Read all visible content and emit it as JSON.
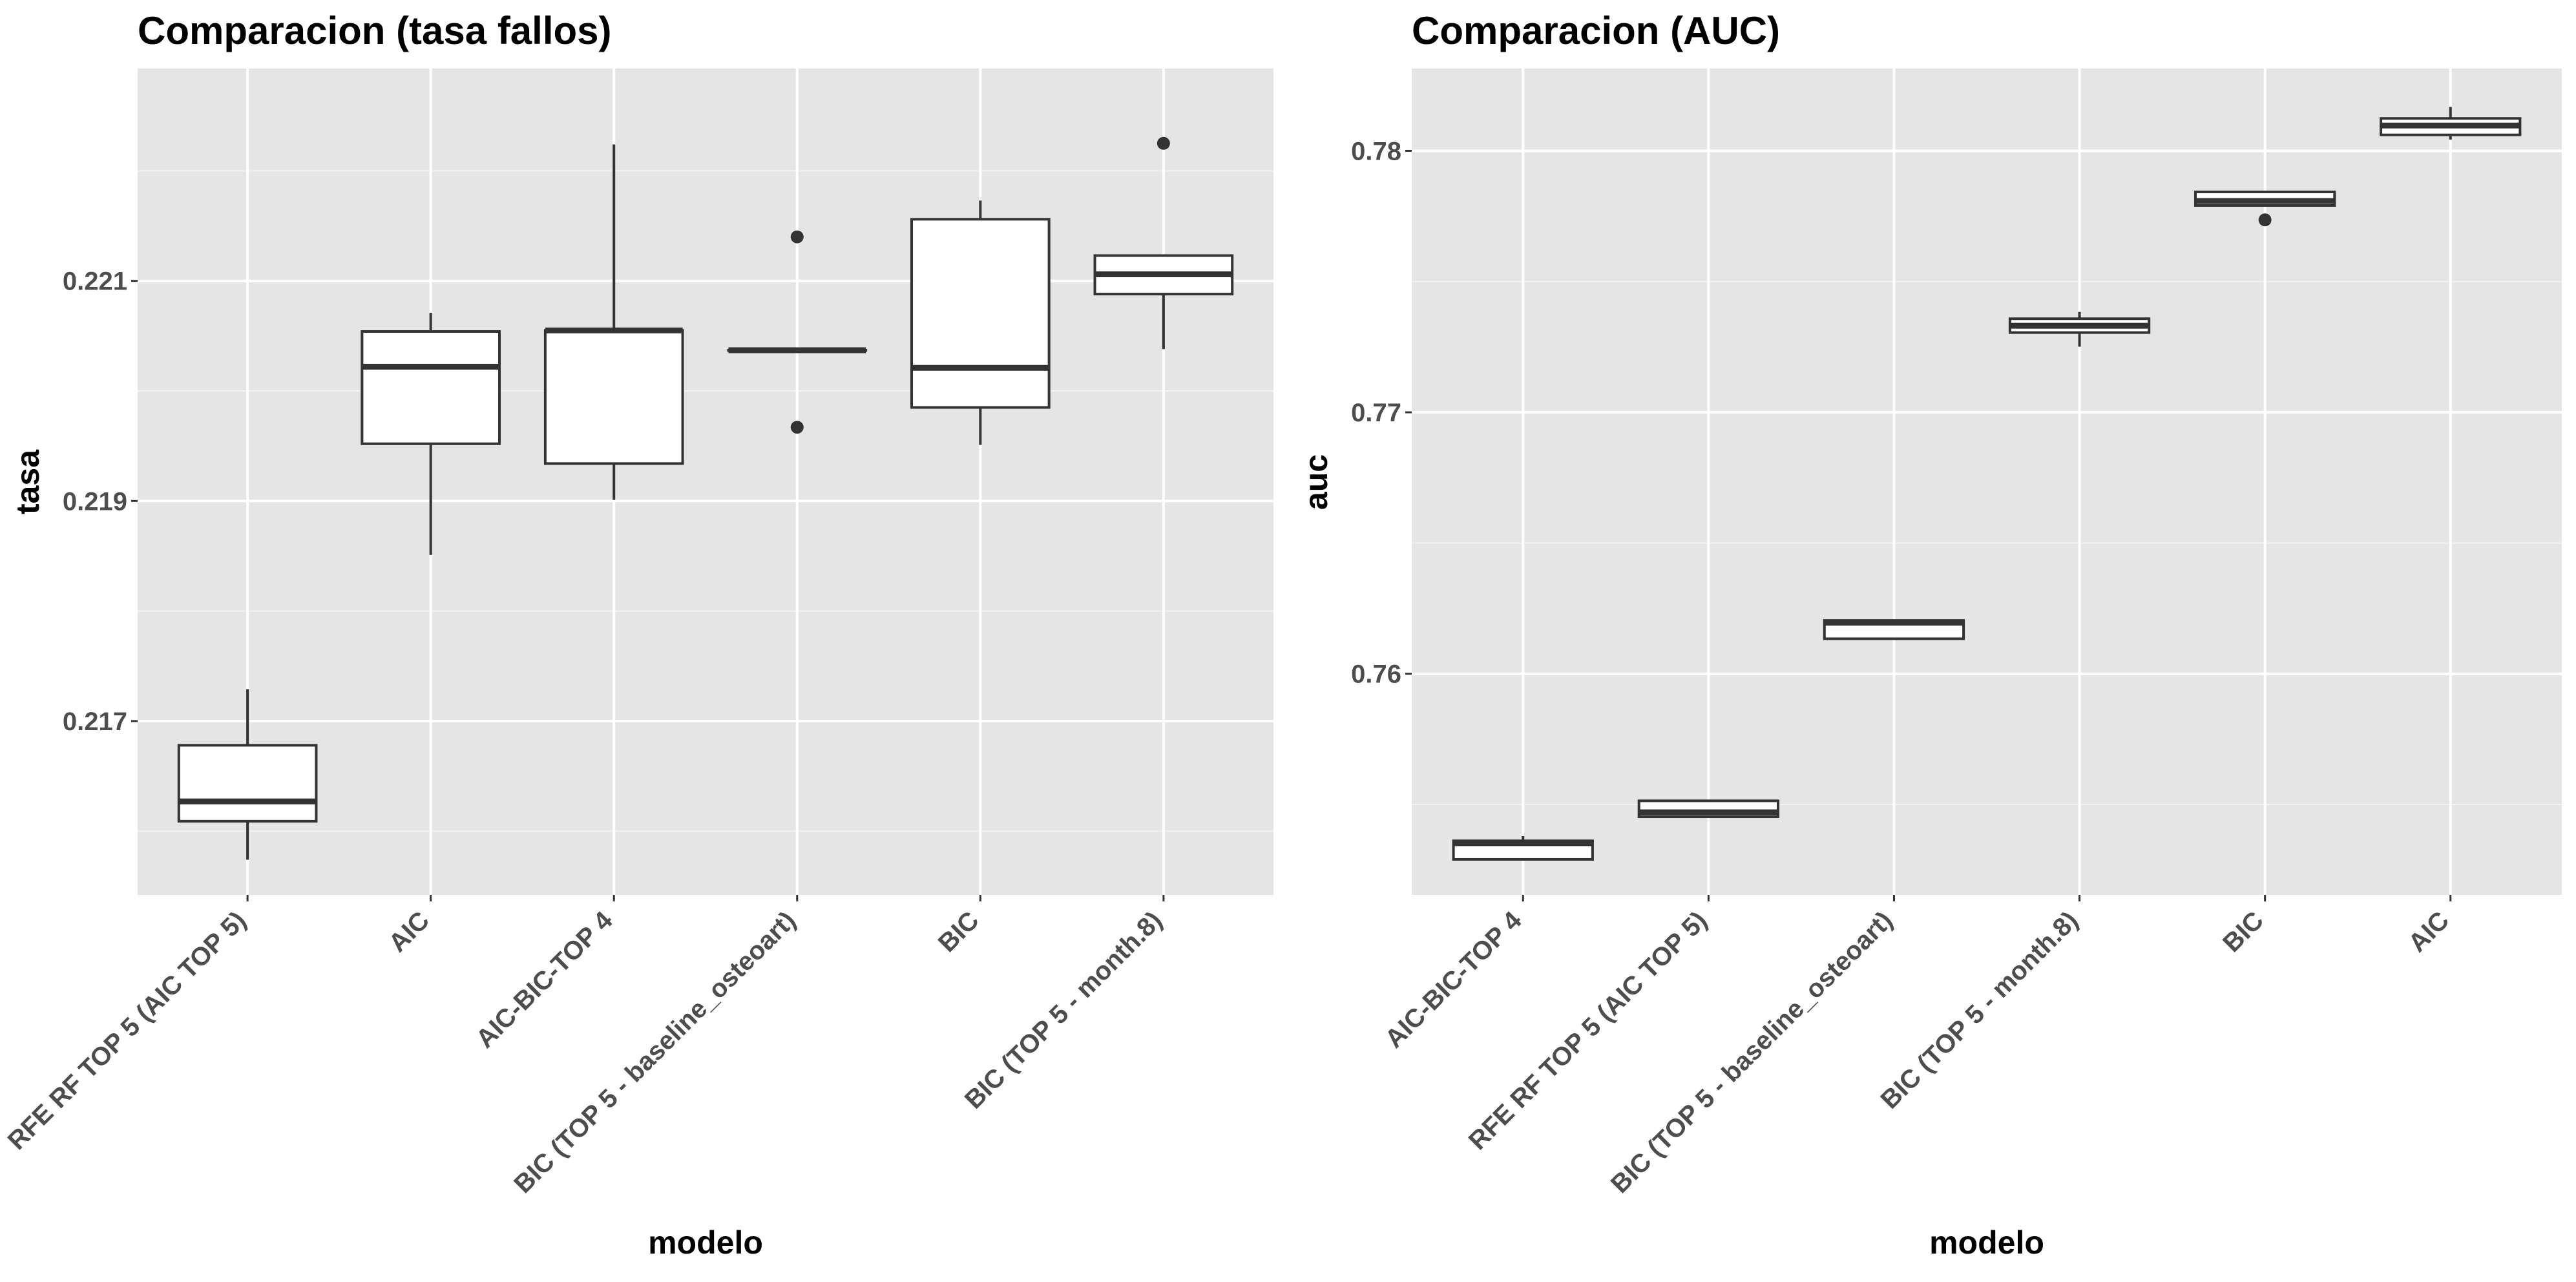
{
  "chart_data": [
    {
      "type": "box",
      "title": "Comparacion (tasa fallos)",
      "xlabel": "modelo",
      "ylabel": "tasa",
      "ylim": [
        0.21542,
        0.22293
      ],
      "yticks": [
        {
          "value": 0.217,
          "label": "0.217"
        },
        {
          "value": 0.219,
          "label": "0.219"
        },
        {
          "value": 0.221,
          "label": "0.221"
        }
      ],
      "categories": [
        "RFE RF TOP 5 (AIC TOP 5)",
        "AIC",
        "AIC-BIC-TOP 4",
        "BIC (TOP 5 - baseline_osteoart)",
        "BIC",
        "BIC (TOP 5 - month.8)"
      ],
      "boxes": [
        {
          "min": 0.21574,
          "q1": 0.21609,
          "median": 0.21627,
          "q3": 0.21678,
          "max": 0.21729,
          "outliers": []
        },
        {
          "min": 0.21851,
          "q1": 0.21952,
          "median": 0.22022,
          "q3": 0.22054,
          "max": 0.22071,
          "outliers": []
        },
        {
          "min": 0.21901,
          "q1": 0.21934,
          "median": 0.22055,
          "q3": 0.22055,
          "max": 0.22224,
          "outliers": []
        },
        {
          "min": 0.22037,
          "q1": 0.22037,
          "median": 0.22037,
          "q3": 0.22037,
          "max": 0.22037,
          "outliers": [
            0.2214,
            0.21967
          ]
        },
        {
          "min": 0.21951,
          "q1": 0.21985,
          "median": 0.22021,
          "q3": 0.22156,
          "max": 0.22173,
          "outliers": []
        },
        {
          "min": 0.22038,
          "q1": 0.22088,
          "median": 0.22106,
          "q3": 0.22123,
          "max": 0.22123,
          "outliers": [
            0.22225
          ]
        }
      ]
    },
    {
      "type": "box",
      "title": "Comparacion (AUC)",
      "xlabel": "modelo",
      "ylabel": "auc",
      "ylim": [
        0.75154,
        0.78315
      ],
      "yticks": [
        {
          "value": 0.76,
          "label": "0.76"
        },
        {
          "value": 0.77,
          "label": "0.77"
        },
        {
          "value": 0.78,
          "label": "0.78"
        }
      ],
      "categories": [
        "AIC-BIC-TOP 4",
        "RFE RF TOP 5 (AIC TOP 5)",
        "BIC (TOP 5 - baseline_osteoart)",
        "BIC (TOP 5 - month.8)",
        "BIC",
        "AIC"
      ],
      "boxes": [
        {
          "min": 0.7529,
          "q1": 0.7529,
          "median": 0.75352,
          "q3": 0.75361,
          "max": 0.75379,
          "outliers": []
        },
        {
          "min": 0.75453,
          "q1": 0.75453,
          "median": 0.7547,
          "q3": 0.75514,
          "max": 0.75514,
          "outliers": []
        },
        {
          "min": 0.76134,
          "q1": 0.76134,
          "median": 0.76195,
          "q3": 0.76204,
          "max": 0.76204,
          "outliers": []
        },
        {
          "min": 0.77251,
          "q1": 0.77305,
          "median": 0.77331,
          "q3": 0.77358,
          "max": 0.77384,
          "outliers": []
        },
        {
          "min": 0.77791,
          "q1": 0.77791,
          "median": 0.77808,
          "q3": 0.77843,
          "max": 0.77843,
          "outliers": [
            0.77736
          ]
        },
        {
          "min": 0.78043,
          "q1": 0.78061,
          "median": 0.78097,
          "q3": 0.78124,
          "max": 0.78168,
          "outliers": []
        }
      ]
    }
  ]
}
